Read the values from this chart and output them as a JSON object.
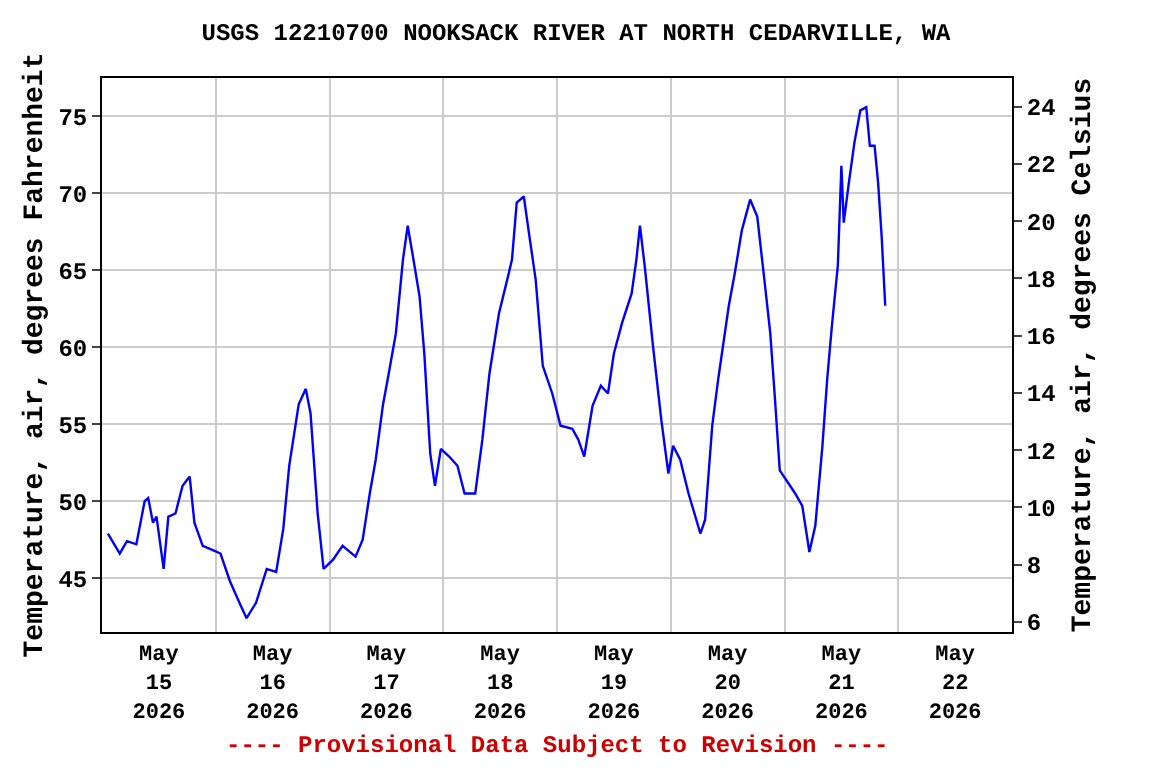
{
  "chart_data": {
    "type": "line",
    "title": "USGS 12210700 NOOKSACK RIVER AT NORTH CEDARVILLE, WA",
    "ylabel": "Temperature, air, degrees Fahrenheit",
    "y2label": "Temperature, air, degrees Celsius",
    "annotations": [
      "---- Provisional Data Subject to Revision ----"
    ],
    "x": [
      "2026-05-15T01:15",
      "2026-05-15T03:45",
      "2026-05-15T05:15",
      "2026-05-15T07:15",
      "2026-05-15T09:00",
      "2026-05-15T09:45",
      "2026-05-15T10:45",
      "2026-05-15T11:30",
      "2026-05-15T13:00",
      "2026-05-15T14:00",
      "2026-05-15T15:30",
      "2026-05-15T17:00",
      "2026-05-15T18:30",
      "2026-05-15T19:30",
      "2026-05-15T21:15",
      "2026-05-15T23:30",
      "2026-05-16T01:00",
      "2026-05-16T03:00",
      "2026-05-16T05:00",
      "2026-05-16T06:30",
      "2026-05-16T08:30",
      "2026-05-16T10:45",
      "2026-05-16T12:45",
      "2026-05-16T14:15",
      "2026-05-16T15:30",
      "2026-05-16T17:30",
      "2026-05-16T19:00",
      "2026-05-16T20:00",
      "2026-05-16T21:30",
      "2026-05-16T22:45",
      "2026-05-17T00:45",
      "2026-05-17T02:45",
      "2026-05-17T05:30",
      "2026-05-17T07:00",
      "2026-05-17T08:30",
      "2026-05-17T09:45",
      "2026-05-17T11:15",
      "2026-05-17T12:30",
      "2026-05-17T14:00",
      "2026-05-17T15:30",
      "2026-05-17T16:30",
      "2026-05-17T17:30",
      "2026-05-17T19:00",
      "2026-05-17T20:00",
      "2026-05-17T21:15",
      "2026-05-17T22:15",
      "2026-05-17T23:30",
      "2026-05-18T01:15",
      "2026-05-18T03:00",
      "2026-05-18T04:30",
      "2026-05-18T06:45",
      "2026-05-18T08:15",
      "2026-05-18T09:45",
      "2026-05-18T11:45",
      "2026-05-18T13:30",
      "2026-05-18T14:30",
      "2026-05-18T15:30",
      "2026-05-18T17:00",
      "2026-05-18T18:00",
      "2026-05-18T19:30",
      "2026-05-18T21:00",
      "2026-05-18T23:00",
      "2026-05-19T00:45",
      "2026-05-19T03:15",
      "2026-05-19T04:30",
      "2026-05-19T05:45",
      "2026-05-19T07:30",
      "2026-05-19T09:15",
      "2026-05-19T10:45",
      "2026-05-19T12:00",
      "2026-05-19T13:45",
      "2026-05-19T15:45",
      "2026-05-19T16:45",
      "2026-05-19T17:30",
      "2026-05-19T18:30",
      "2026-05-19T20:15",
      "2026-05-19T22:00",
      "2026-05-19T23:30",
      "2026-05-20T00:30",
      "2026-05-20T02:00",
      "2026-05-20T03:45",
      "2026-05-20T06:15",
      "2026-05-20T07:15",
      "2026-05-20T08:45",
      "2026-05-20T10:00",
      "2026-05-20T12:15",
      "2026-05-20T13:30",
      "2026-05-20T15:00",
      "2026-05-20T16:45",
      "2026-05-20T18:15",
      "2026-05-20T19:45",
      "2026-05-20T21:00",
      "2026-05-20T22:00",
      "2026-05-20T23:00",
      "2026-05-21T00:45",
      "2026-05-21T02:15",
      "2026-05-21T03:45",
      "2026-05-21T05:15",
      "2026-05-21T06:30",
      "2026-05-21T08:00",
      "2026-05-21T09:00",
      "2026-05-21T10:00",
      "2026-05-21T11:15",
      "2026-05-21T12:00",
      "2026-05-21T12:30",
      "2026-05-21T13:30",
      "2026-05-21T14:45",
      "2026-05-21T16:00",
      "2026-05-21T17:15",
      "2026-05-21T18:00",
      "2026-05-21T19:00",
      "2026-05-21T19:45",
      "2026-05-21T20:30",
      "2026-05-21T21:15"
    ],
    "series": [
      {
        "color": "#0000ff",
        "values": [
          47.9,
          46.6,
          47.4,
          47.2,
          50.0,
          50.2,
          48.6,
          49.0,
          45.6,
          49.0,
          49.2,
          51.0,
          51.6,
          48.6,
          47.1,
          46.8,
          46.6,
          44.8,
          43.4,
          42.4,
          43.4,
          45.6,
          45.4,
          48.2,
          52.3,
          56.3,
          57.3,
          55.7,
          49.2,
          45.6,
          46.2,
          47.1,
          46.4,
          47.5,
          50.5,
          52.7,
          56.2,
          58.3,
          60.9,
          65.7,
          67.9,
          66.1,
          63.3,
          59.6,
          53.1,
          51.0,
          53.4,
          52.9,
          52.3,
          50.5,
          50.5,
          54.0,
          58.3,
          62.2,
          64.4,
          65.7,
          69.4,
          69.8,
          67.6,
          64.4,
          58.8,
          57.0,
          54.9,
          54.7,
          54.0,
          52.9,
          56.2,
          57.5,
          57.0,
          59.6,
          61.6,
          63.5,
          65.7,
          67.9,
          65.3,
          60.1,
          55.3,
          51.8,
          53.6,
          52.7,
          50.5,
          47.9,
          48.8,
          54.9,
          57.9,
          62.7,
          64.8,
          67.6,
          69.6,
          68.5,
          64.4,
          60.9,
          56.6,
          52.0,
          51.2,
          50.5,
          49.7,
          46.7,
          48.4,
          53.6,
          57.9,
          61.4,
          65.3,
          71.8,
          68.1,
          70.5,
          73.3,
          75.4,
          75.6,
          73.1,
          73.1,
          70.7,
          67.2,
          62.7
        ]
      }
    ],
    "xlim": [
      "2026-05-15T00:00",
      "2026-05-23T00:00"
    ],
    "xticks": [
      {
        "value": "2026-05-15T12:00",
        "label": "May\n15\n2026"
      },
      {
        "value": "2026-05-16T00:00",
        "label": null
      },
      {
        "value": "2026-05-16T12:00",
        "label": "May\n16\n2026"
      },
      {
        "value": "2026-05-17T00:00",
        "label": null
      },
      {
        "value": "2026-05-17T12:00",
        "label": "May\n17\n2026"
      },
      {
        "value": "2026-05-18T00:00",
        "label": null
      },
      {
        "value": "2026-05-18T12:00",
        "label": "May\n18\n2026"
      },
      {
        "value": "2026-05-19T00:00",
        "label": null
      },
      {
        "value": "2026-05-19T12:00",
        "label": "May\n19\n2026"
      },
      {
        "value": "2026-05-20T00:00",
        "label": null
      },
      {
        "value": "2026-05-20T12:00",
        "label": "May\n20\n2026"
      },
      {
        "value": "2026-05-21T00:00",
        "label": null
      },
      {
        "value": "2026-05-21T12:00",
        "label": "May\n21\n2026"
      },
      {
        "value": "2026-05-22T00:00",
        "label": null
      },
      {
        "value": "2026-05-22T12:00",
        "label": "May\n22\n2026"
      }
    ],
    "ylim": [
      41.5,
      77.5
    ],
    "yticks": [
      45,
      50,
      55,
      60,
      65,
      70,
      75
    ],
    "y2lim": [
      5.65,
      25.0
    ],
    "y2ticks": [
      6,
      8,
      10,
      12,
      14,
      16,
      18,
      20,
      22,
      24
    ],
    "grid": true,
    "line_style": "solid",
    "marker": "none"
  }
}
